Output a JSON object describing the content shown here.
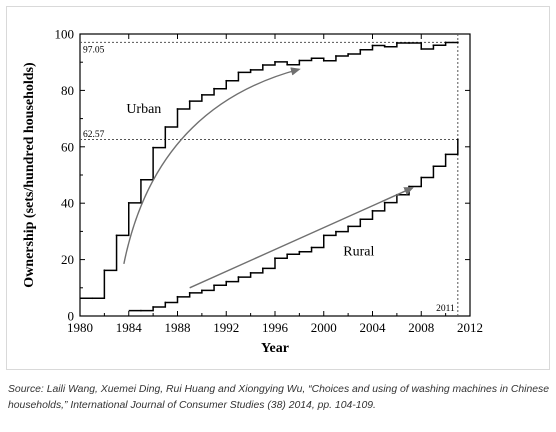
{
  "chart_data": {
    "type": "line",
    "line_style": "step",
    "xlabel": "Year",
    "ylabel": "Ownership (sets/hundred households)",
    "xlim": [
      1980,
      2012
    ],
    "ylim": [
      0,
      100
    ],
    "xticks": [
      1980,
      1984,
      1988,
      1992,
      1996,
      2000,
      2004,
      2008,
      2012
    ],
    "yticks": [
      0,
      20,
      40,
      60,
      80,
      100
    ],
    "grid": false,
    "legend": "none",
    "series": [
      {
        "name": "Urban",
        "x": [
          1981,
          1982,
          1983,
          1984,
          1985,
          1986,
          1987,
          1988,
          1989,
          1990,
          1991,
          1992,
          1993,
          1994,
          1995,
          1996,
          1997,
          1998,
          1999,
          2000,
          2001,
          2002,
          2003,
          2004,
          2005,
          2006,
          2007,
          2008,
          2009,
          2010,
          2011
        ],
        "values": [
          6.3,
          16.2,
          28.6,
          40.1,
          48.3,
          59.7,
          67.0,
          73.4,
          76.2,
          78.4,
          80.6,
          83.4,
          86.4,
          87.3,
          89.0,
          90.1,
          89.1,
          90.6,
          91.4,
          90.5,
          92.2,
          92.9,
          94.4,
          95.9,
          95.5,
          96.8,
          96.8,
          94.7,
          96.0,
          97.0,
          97.05
        ]
      },
      {
        "name": "Rural",
        "x": [
          1985,
          1986,
          1987,
          1988,
          1989,
          1990,
          1991,
          1992,
          1993,
          1994,
          1995,
          1996,
          1997,
          1998,
          1999,
          2000,
          2001,
          2002,
          2003,
          2004,
          2005,
          2006,
          2007,
          2008,
          2009,
          2010,
          2011
        ],
        "values": [
          1.9,
          3.2,
          4.8,
          6.8,
          8.2,
          9.1,
          10.9,
          12.2,
          13.8,
          15.3,
          16.9,
          20.5,
          21.9,
          22.8,
          24.3,
          28.6,
          29.9,
          31.8,
          34.3,
          37.3,
          40.2,
          43.0,
          45.9,
          49.1,
          53.1,
          57.3,
          62.57
        ]
      }
    ],
    "annotations": {
      "urban_label": "Urban",
      "rural_label": "Rural",
      "urban_value": "97.05",
      "rural_value": "62.57",
      "end_year": "2011",
      "urban_value_num": 97.05,
      "rural_value_num": 62.57,
      "end_year_num": 2011
    }
  },
  "caption": "Source: Laili Wang, Xuemei Ding, Rui Huang and Xiongying Wu, “Choices and using of washing machines in Chinese households,” International Journal of Consumer Studies (38) 2014, pp. 104-109.",
  "colors": {
    "line": "#000000",
    "arrow": "#707070",
    "guide": "#555555",
    "caption": "#333333"
  }
}
